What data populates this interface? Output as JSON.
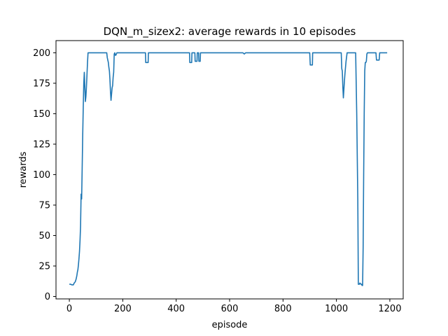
{
  "chart_data": {
    "type": "line",
    "title": "DQN_m_sizex2: average rewards in 10 episodes",
    "xlabel": "episode",
    "ylabel": "rewards",
    "xlim": [
      -50,
      1250
    ],
    "ylim": [
      -2,
      210
    ],
    "xticks": [
      0,
      200,
      400,
      600,
      800,
      1000,
      1200
    ],
    "yticks": [
      0,
      25,
      50,
      75,
      100,
      125,
      150,
      175,
      200
    ],
    "grid": false,
    "series": [
      {
        "color": "#1f77b4",
        "x": [
          0,
          5,
          10,
          15,
          18,
          22,
          25,
          28,
          30,
          32,
          34,
          36,
          38,
          40,
          42,
          44,
          46,
          48,
          50,
          52,
          54,
          56,
          58,
          60,
          62,
          64,
          66,
          68,
          70,
          72,
          74,
          76,
          80,
          90,
          100,
          110,
          120,
          130,
          138,
          140,
          142,
          144,
          146,
          148,
          150,
          152,
          154,
          156,
          158,
          160,
          162,
          164,
          166,
          168,
          170,
          172,
          174,
          176,
          178,
          180,
          182,
          184,
          190,
          200,
          250,
          285,
          286,
          295,
          296,
          300,
          350,
          400,
          440,
          450,
          451,
          458,
          459,
          470,
          471,
          478,
          479,
          484,
          485,
          490,
          491,
          500,
          501,
          510,
          600,
          650,
          655,
          660,
          700,
          800,
          900,
          902,
          910,
          911,
          920,
          1000,
          1010,
          1018,
          1020,
          1022,
          1024,
          1026,
          1028,
          1030,
          1032,
          1036,
          1040,
          1060,
          1068,
          1072,
          1076,
          1080,
          1082,
          1084,
          1086,
          1088,
          1092,
          1094,
          1096,
          1098,
          1100,
          1102,
          1104,
          1106,
          1108,
          1110,
          1112,
          1114,
          1116,
          1118,
          1120,
          1124,
          1130,
          1140,
          1148,
          1150,
          1160,
          1162,
          1170,
          1180,
          1190
        ],
        "y": [
          10,
          10,
          9.5,
          9.5,
          11,
          12,
          14,
          17,
          20,
          22,
          26,
          31,
          37,
          46,
          58,
          84,
          80,
          105,
          132,
          155,
          175,
          184,
          172,
          160,
          164,
          172,
          182,
          192,
          200,
          200,
          200,
          200,
          200,
          200,
          200,
          200,
          200,
          200,
          200,
          200,
          196,
          194,
          192,
          188,
          185,
          178,
          168,
          161,
          166,
          171,
          173,
          180,
          184,
          199,
          200,
          198,
          198,
          199,
          200,
          200,
          200,
          200,
          200,
          200,
          200,
          200,
          192,
          192,
          200,
          200,
          200,
          200,
          200,
          200,
          192,
          192,
          200,
          200,
          193,
          193,
          200,
          200,
          193,
          193,
          200,
          200,
          200,
          200,
          200,
          200,
          199,
          200,
          200,
          200,
          200,
          190,
          190,
          200,
          200,
          200,
          200,
          200,
          187,
          185,
          172,
          163,
          170,
          177,
          183,
          193,
          200,
          200,
          200,
          200,
          150,
          80,
          10,
          10,
          10,
          11,
          10,
          10,
          9,
          9,
          40,
          100,
          150,
          185,
          192,
          192,
          193,
          199,
          200,
          200,
          200,
          200,
          200,
          200,
          200,
          194,
          194,
          200,
          200,
          200,
          200
        ]
      }
    ]
  }
}
